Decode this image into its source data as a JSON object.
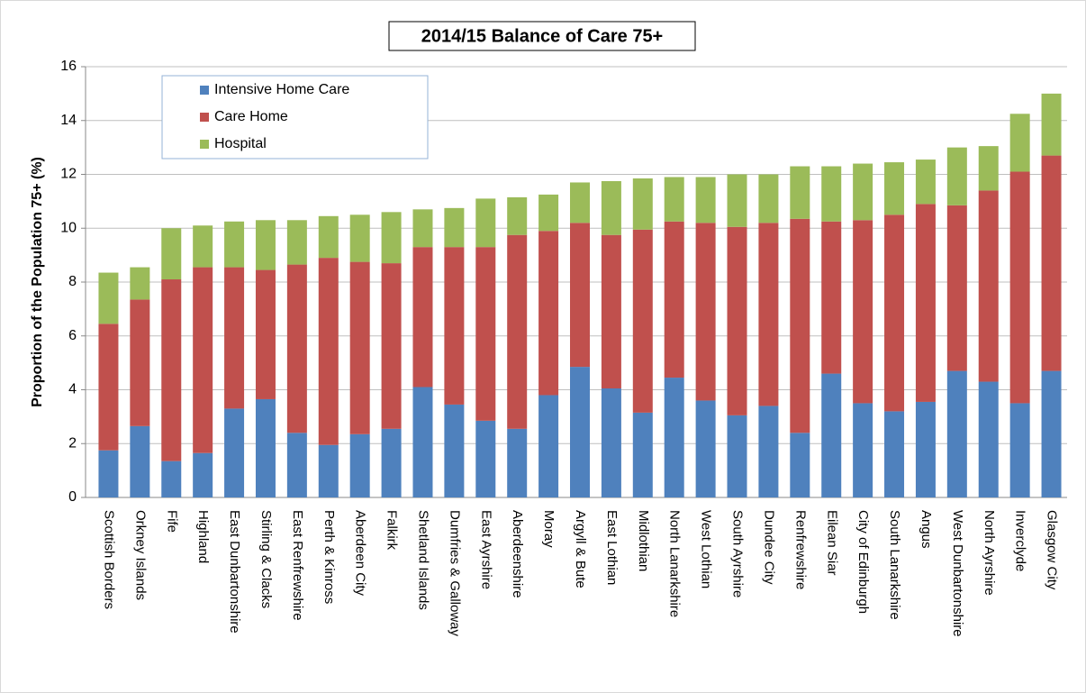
{
  "chart_data": {
    "type": "stacked_bar",
    "title": "2014/15 Balance of Care 75+",
    "y_label": "Proportion of the Population  75+ (%)",
    "categories": [
      "Scottish Borders",
      "Orkney Islands",
      "Fife",
      "Highland",
      "East Dunbartonshire",
      "Stirling & Clacks",
      "East Renfrewshire",
      "Perth & Kinross",
      "Aberdeen City",
      "Falkirk",
      "Shetland Islands",
      "Dumfries & Galloway",
      "East Ayrshire",
      "Aberdeenshire",
      "Moray",
      "Argyll & Bute",
      "East Lothian",
      "Midlothian",
      "North Lanarkshire",
      "West Lothian",
      "South Ayrshire",
      "Dundee City",
      "Renfrewshire",
      "Eilean Siar",
      "City of Edinburgh",
      "South Lanarkshire",
      "Angus",
      "West Dunbartonshire",
      "North Ayrshire",
      "Inverclyde",
      "Glasgow City"
    ],
    "series": [
      {
        "name": "Intensive Home  Care",
        "color": "#4f81bd",
        "values": [
          1.75,
          2.65,
          1.35,
          1.65,
          3.3,
          3.65,
          2.4,
          1.95,
          2.35,
          2.55,
          4.1,
          3.45,
          2.85,
          2.55,
          3.8,
          4.85,
          4.05,
          3.15,
          4.45,
          3.6,
          3.05,
          3.4,
          2.4,
          4.6,
          3.5,
          3.2,
          3.55,
          4.7,
          4.3,
          3.5,
          4.7
        ]
      },
      {
        "name": "Care Home",
        "color": "#c0504d",
        "values": [
          4.7,
          4.7,
          6.75,
          6.9,
          5.25,
          4.8,
          6.25,
          6.95,
          6.4,
          6.15,
          5.2,
          5.85,
          6.45,
          7.2,
          6.1,
          5.35,
          5.7,
          6.8,
          5.8,
          6.6,
          7.0,
          6.8,
          7.95,
          5.65,
          6.8,
          7.3,
          7.35,
          6.15,
          7.1,
          8.6,
          8.0
        ]
      },
      {
        "name": "Hospital",
        "color": "#9bbb59",
        "values": [
          1.9,
          1.2,
          1.9,
          1.55,
          1.7,
          1.85,
          1.65,
          1.55,
          1.75,
          1.9,
          1.4,
          1.45,
          1.8,
          1.4,
          1.35,
          1.5,
          2.0,
          1.9,
          1.65,
          1.7,
          1.95,
          1.8,
          1.95,
          2.05,
          2.1,
          1.95,
          1.65,
          2.15,
          1.65,
          2.15,
          2.3
        ]
      }
    ],
    "ylim": [
      0,
      16
    ],
    "yticks": [
      0,
      2,
      4,
      6,
      8,
      10,
      12,
      14,
      16
    ],
    "grid": true,
    "legend": "upper left"
  }
}
